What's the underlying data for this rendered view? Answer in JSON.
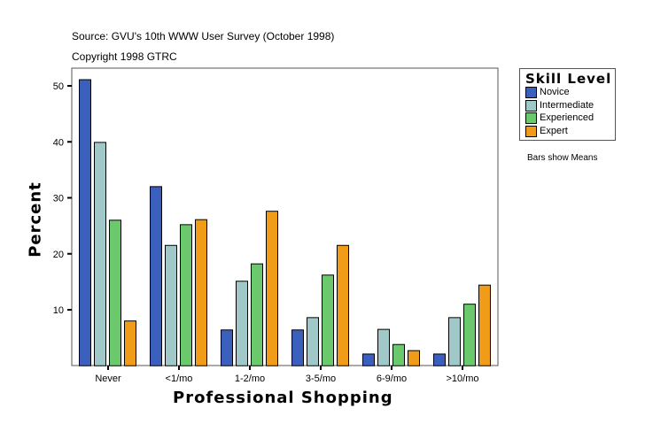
{
  "header": {
    "source": "Source: GVU's 10th WWW User Survey (October 1998)",
    "copyright": "Copyright 1998 GTRC"
  },
  "note": "Bars show Means",
  "chart_data": {
    "type": "bar",
    "xlabel": "Professional Shopping",
    "ylabel": "Percent",
    "categories": [
      "Never",
      "<1/mo",
      "1-2/mo",
      "3-5/mo",
      "6-9/mo",
      ">10/mo"
    ],
    "yticks": [
      10,
      20,
      30,
      40,
      50
    ],
    "ylim": [
      0,
      53
    ],
    "grid": false,
    "legend": {
      "title": "Skill Level",
      "placement": "right"
    },
    "series": [
      {
        "name": "Novice",
        "color": "#3a5fbd",
        "values": [
          51.1,
          32.0,
          6.4,
          6.4,
          2.1,
          2.1
        ]
      },
      {
        "name": "Intermediate",
        "color": "#a0c8c8",
        "values": [
          39.9,
          21.5,
          15.1,
          8.6,
          6.5,
          8.6
        ]
      },
      {
        "name": "Experienced",
        "color": "#6cc86c",
        "values": [
          26.0,
          25.2,
          18.2,
          16.2,
          3.8,
          11.0
        ]
      },
      {
        "name": "Expert",
        "color": "#f09c18",
        "values": [
          8.0,
          26.1,
          27.6,
          21.5,
          2.7,
          14.4
        ]
      }
    ]
  }
}
